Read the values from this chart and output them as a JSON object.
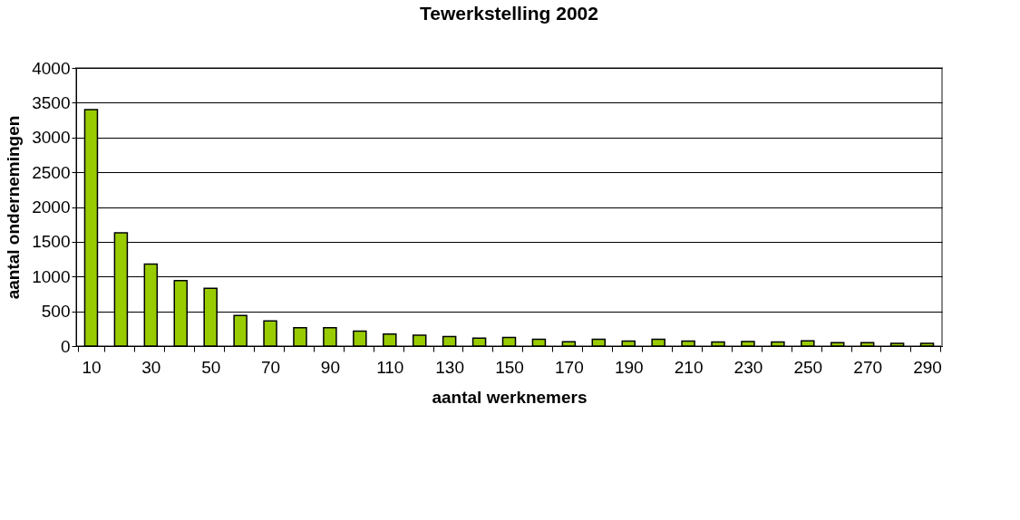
{
  "chart_data": {
    "type": "bar",
    "title": "Tewerkstelling 2002",
    "xlabel": "aantal werknemers",
    "ylabel": "aantal ondernemingen",
    "categories": [
      "10",
      null,
      "30",
      null,
      "50",
      null,
      "70",
      null,
      "90",
      null,
      "110",
      null,
      "130",
      null,
      "150",
      null,
      "170",
      null,
      "190",
      null,
      "210",
      null,
      "230",
      null,
      "250",
      null,
      "270",
      null,
      "290"
    ],
    "values": [
      3400,
      1630,
      1180,
      940,
      830,
      440,
      360,
      265,
      265,
      215,
      173,
      155,
      137,
      115,
      124,
      97,
      62,
      97,
      71,
      97,
      71,
      58,
      66,
      58,
      75,
      49,
      49,
      40,
      40
    ],
    "color": "#99cc00",
    "ylim": [
      0,
      4000
    ],
    "yticks": [
      0,
      500,
      1000,
      1500,
      2000,
      2500,
      3000,
      3500,
      4000
    ],
    "grid": "y"
  }
}
